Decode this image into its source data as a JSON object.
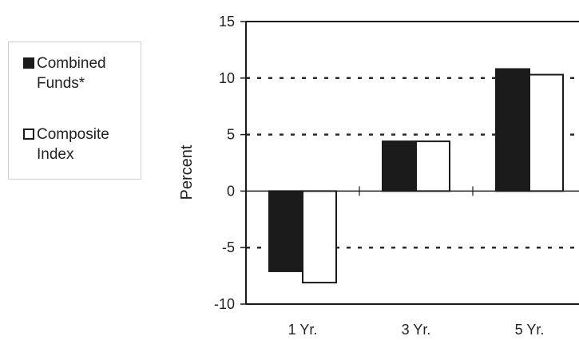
{
  "chart_data": {
    "type": "bar",
    "categories": [
      "1 Yr.",
      "3 Yr.",
      "5 Yr."
    ],
    "series": [
      {
        "name": "Combined Funds*",
        "values": [
          -7.1,
          4.4,
          10.8
        ],
        "color": "#1b1b1b"
      },
      {
        "name": "Composite Index",
        "values": [
          -8.1,
          4.4,
          10.3
        ],
        "color": "#ffffff"
      }
    ],
    "ylabel": "Percent",
    "ylim": [
      -10,
      15
    ],
    "yticks": [
      15,
      10,
      5,
      0,
      -5,
      -10
    ],
    "ytick_labels": [
      "15",
      "10",
      "5",
      "0",
      "-5",
      "-10"
    ],
    "grid": "dotted horizontal at 10, 5, -5",
    "legend": {
      "placement": "left",
      "items": [
        {
          "label_line1": "Combined",
          "label_line2": "Funds*",
          "swatch": "filled"
        },
        {
          "label_line1": "Composite",
          "label_line2": "Index",
          "swatch": "outline"
        }
      ]
    }
  }
}
